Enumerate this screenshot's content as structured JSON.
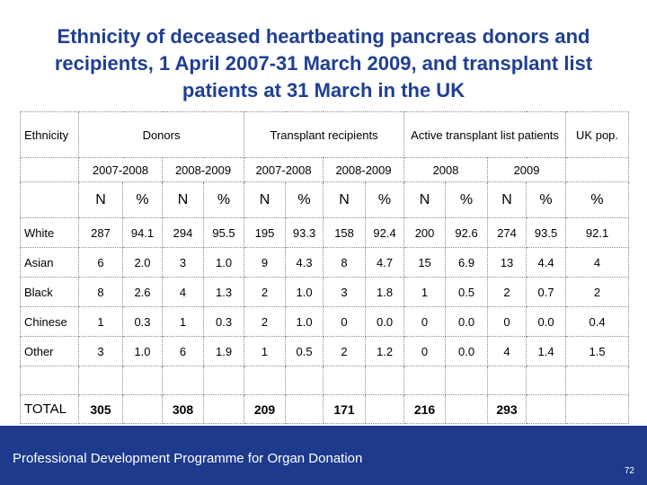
{
  "title": "Ethnicity of deceased heartbeating pancreas donors and recipients, 1 April 2007-31 March 2009, and transplant list patients at 31 March in the UK",
  "header": {
    "ethnicity": "Ethnicity",
    "donors": "Donors",
    "transplant_recipients": "Transplant recipients",
    "active_list": "Active transplant list patients",
    "uk_pop": "UK pop."
  },
  "periods": [
    "2007-2008",
    "2008-2009",
    "2007-2008",
    "2008-2009",
    "2008",
    "2009"
  ],
  "units": {
    "n": "N",
    "pct": "%"
  },
  "rows": [
    {
      "label": "White",
      "values": [
        "287",
        "94.1",
        "294",
        "95.5",
        "195",
        "93.3",
        "158",
        "92.4",
        "200",
        "92.6",
        "274",
        "93.5",
        "92.1"
      ]
    },
    {
      "label": "Asian",
      "values": [
        "6",
        "2.0",
        "3",
        "1.0",
        "9",
        "4.3",
        "8",
        "4.7",
        "15",
        "6.9",
        "13",
        "4.4",
        "4"
      ]
    },
    {
      "label": "Black",
      "values": [
        "8",
        "2.6",
        "4",
        "1.3",
        "2",
        "1.0",
        "3",
        "1.8",
        "1",
        "0.5",
        "2",
        "0.7",
        "2"
      ]
    },
    {
      "label": "Chinese",
      "values": [
        "1",
        "0.3",
        "1",
        "0.3",
        "2",
        "1.0",
        "0",
        "0.0",
        "0",
        "0.0",
        "0",
        "0.0",
        "0.4"
      ]
    },
    {
      "label": "Other",
      "values": [
        "3",
        "1.0",
        "6",
        "1.9",
        "1",
        "0.5",
        "2",
        "1.2",
        "0",
        "0.0",
        "4",
        "1.4",
        "1.5"
      ]
    }
  ],
  "total": {
    "label": "TOTAL",
    "values": [
      "305",
      "308",
      "209",
      "171",
      "216",
      "293"
    ]
  },
  "footer": {
    "text": "Professional Development Programme for Organ Donation",
    "page": "72"
  }
}
